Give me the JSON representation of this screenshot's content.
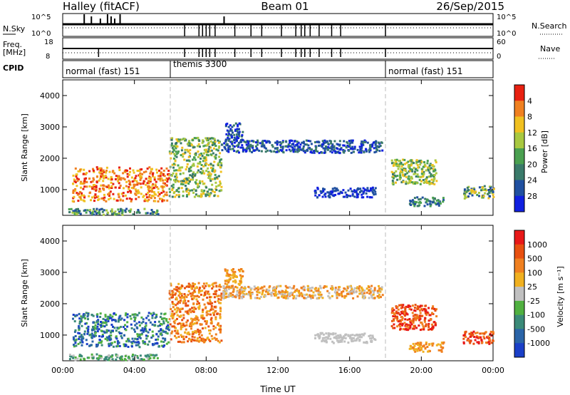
{
  "header": {
    "station": "Halley (fitACF)",
    "beam": "Beam 01",
    "date": "26/Sep/2015"
  },
  "left_labels": {
    "nsky": "N.Sky",
    "freq": "Freq.",
    "freq_unit": "[MHz]",
    "cpid": "CPID"
  },
  "right_labels": {
    "nsearch": "N.Search",
    "nave": "Nave"
  },
  "nsky_ticks": [
    "10^5",
    "10^0"
  ],
  "nsearch_ticks": [
    "10^5",
    "10^0"
  ],
  "freq_ticks": [
    "18",
    "8"
  ],
  "nave_ticks": [
    "60",
    "0"
  ],
  "cpid_segments": [
    {
      "label": "normal (fast) 151",
      "start_hour": 0,
      "end_hour": 6
    },
    {
      "label": "themis 3300",
      "start_hour": 6,
      "end_hour": 18
    },
    {
      "label": "normal (fast) 151",
      "start_hour": 18,
      "end_hour": 24
    }
  ],
  "x_axis": {
    "label": "Time UT",
    "range_hours": [
      0,
      24
    ],
    "ticks": [
      {
        "hour": 0,
        "label": "00:00"
      },
      {
        "hour": 4,
        "label": "04:00"
      },
      {
        "hour": 8,
        "label": "08:00"
      },
      {
        "hour": 12,
        "label": "12:00"
      },
      {
        "hour": 16,
        "label": "16:00"
      },
      {
        "hour": 20,
        "label": "20:00"
      },
      {
        "hour": 24,
        "label": "00:00"
      }
    ]
  },
  "chart_data": [
    {
      "type": "heatmap",
      "xlabel": "Time UT",
      "ylabel": "Slant Range [km]",
      "xlim": [
        0,
        24
      ],
      "ylim": [
        180,
        4500
      ],
      "yticks": [
        1000,
        2000,
        3000,
        4000
      ],
      "colorbar": {
        "label": "Power [dB]",
        "range": [
          0,
          32
        ],
        "ticks": [
          "4",
          "8",
          "12",
          "16",
          "20",
          "24",
          "28"
        ],
        "colors": [
          "#1020e0",
          "#2050a0",
          "#3a7a6a",
          "#4aa050",
          "#a8c840",
          "#f0c020",
          "#f08020",
          "#e82010"
        ]
      },
      "regions": [
        {
          "t0": 0.5,
          "t1": 5.9,
          "r0": 650,
          "r1": 1750,
          "c": [
            5,
            7
          ]
        },
        {
          "t0": 5.9,
          "t1": 8.8,
          "r0": 800,
          "r1": 2700,
          "c": [
            2,
            5
          ]
        },
        {
          "t0": 8.8,
          "t1": 17.8,
          "r0": 2200,
          "r1": 2600,
          "c": [
            0,
            2
          ]
        },
        {
          "t0": 9.0,
          "t1": 10.0,
          "r0": 2550,
          "r1": 3150,
          "c": [
            0,
            2
          ]
        },
        {
          "t0": 14.0,
          "t1": 17.4,
          "r0": 780,
          "r1": 1100,
          "c": [
            0,
            1
          ]
        },
        {
          "t0": 18.3,
          "t1": 20.8,
          "r0": 1200,
          "r1": 2000,
          "c": [
            2,
            5
          ]
        },
        {
          "t0": 19.3,
          "t1": 21.2,
          "r0": 500,
          "r1": 800,
          "c": [
            1,
            3
          ]
        },
        {
          "t0": 22.3,
          "t1": 24.0,
          "r0": 750,
          "r1": 1150,
          "c": [
            1,
            5
          ]
        },
        {
          "t0": 0.3,
          "t1": 5.3,
          "r0": 230,
          "r1": 420,
          "c": [
            1,
            4
          ]
        }
      ]
    },
    {
      "type": "heatmap",
      "xlabel": "Time UT",
      "ylabel": "Slant Range [km]",
      "xlim": [
        0,
        24
      ],
      "ylim": [
        180,
        4500
      ],
      "yticks": [
        1000,
        2000,
        3000,
        4000
      ],
      "colorbar": {
        "label": "Velocity [m s⁻¹]",
        "range": [
          -1250,
          1250
        ],
        "ticks": [
          "1000",
          "500",
          "100",
          "25",
          "-25",
          "-100",
          "-500",
          "-1000"
        ],
        "colors": [
          "#1a3fc8",
          "#2a64a8",
          "#3a8a78",
          "#50b040",
          "#c0c0c0",
          "#f0b020",
          "#f08020",
          "#e85010",
          "#e81818"
        ]
      },
      "regions": [
        {
          "t0": 0.5,
          "t1": 5.9,
          "r0": 650,
          "r1": 1750,
          "c": [
            0,
            3
          ]
        },
        {
          "t0": 5.9,
          "t1": 8.8,
          "r0": 800,
          "r1": 2700,
          "c": [
            5,
            7
          ]
        },
        {
          "t0": 8.8,
          "t1": 17.8,
          "r0": 2200,
          "r1": 2600,
          "c": [
            4,
            6
          ]
        },
        {
          "t0": 9.0,
          "t1": 10.0,
          "r0": 2550,
          "r1": 3150,
          "c": [
            5,
            6
          ]
        },
        {
          "t0": 14.0,
          "t1": 17.4,
          "r0": 780,
          "r1": 1100,
          "c": [
            4,
            4
          ]
        },
        {
          "t0": 18.3,
          "t1": 20.8,
          "r0": 1200,
          "r1": 2000,
          "c": [
            6,
            8
          ]
        },
        {
          "t0": 19.3,
          "t1": 21.2,
          "r0": 500,
          "r1": 800,
          "c": [
            5,
            6
          ]
        },
        {
          "t0": 22.3,
          "t1": 24.0,
          "r0": 750,
          "r1": 1150,
          "c": [
            6,
            8
          ]
        },
        {
          "t0": 0.3,
          "t1": 5.3,
          "r0": 230,
          "r1": 420,
          "c": [
            2,
            4
          ]
        }
      ]
    }
  ]
}
